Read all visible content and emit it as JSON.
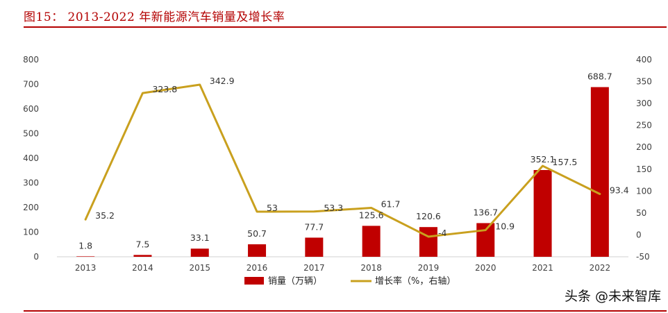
{
  "figure_title": "图15： 2013-2022 年新能源汽车销量及增长率",
  "watermark": "头条 @未来智库",
  "colors": {
    "bar": "#c00000",
    "line": "#c9a01e",
    "title": "#b30000"
  },
  "chart_data": {
    "type": "bar+line",
    "title": "2013-2022 年新能源汽车销量及增长率",
    "categories": [
      "2013",
      "2014",
      "2015",
      "2016",
      "2017",
      "2018",
      "2019",
      "2020",
      "2021",
      "2022"
    ],
    "series": [
      {
        "name": "销量（万辆）",
        "type": "bar",
        "axis": "left",
        "values": [
          1.8,
          7.5,
          33.1,
          50.7,
          77.7,
          125.6,
          120.6,
          136.7,
          352.1,
          688.7
        ],
        "labels": [
          "1.8",
          "7.5",
          "33.1",
          "50.7",
          "77.7",
          "125.6",
          "120.6",
          "136.7",
          "352.1",
          "688.7"
        ]
      },
      {
        "name": "增长率（%，右轴）",
        "type": "line",
        "axis": "right",
        "values": [
          35.2,
          323.8,
          342.9,
          53,
          53.3,
          61.7,
          -4,
          10.9,
          157.5,
          93.4
        ],
        "labels": [
          "35.2",
          "323.8",
          "342.9",
          "53",
          "53.3",
          "61.7",
          "-4",
          "10.9",
          "157.5",
          "93.4"
        ]
      }
    ],
    "y_left": {
      "min": 0,
      "max": 800,
      "ticks": [
        "0",
        "100",
        "200",
        "300",
        "400",
        "500",
        "600",
        "700",
        "800"
      ]
    },
    "y_right": {
      "min": -50,
      "max": 400,
      "ticks": [
        "-50",
        "0",
        "50",
        "100",
        "150",
        "200",
        "250",
        "300",
        "350",
        "400"
      ]
    },
    "legend": [
      "销量（万辆）",
      "增长率（%，右轴）"
    ],
    "legend_position": "bottom"
  }
}
